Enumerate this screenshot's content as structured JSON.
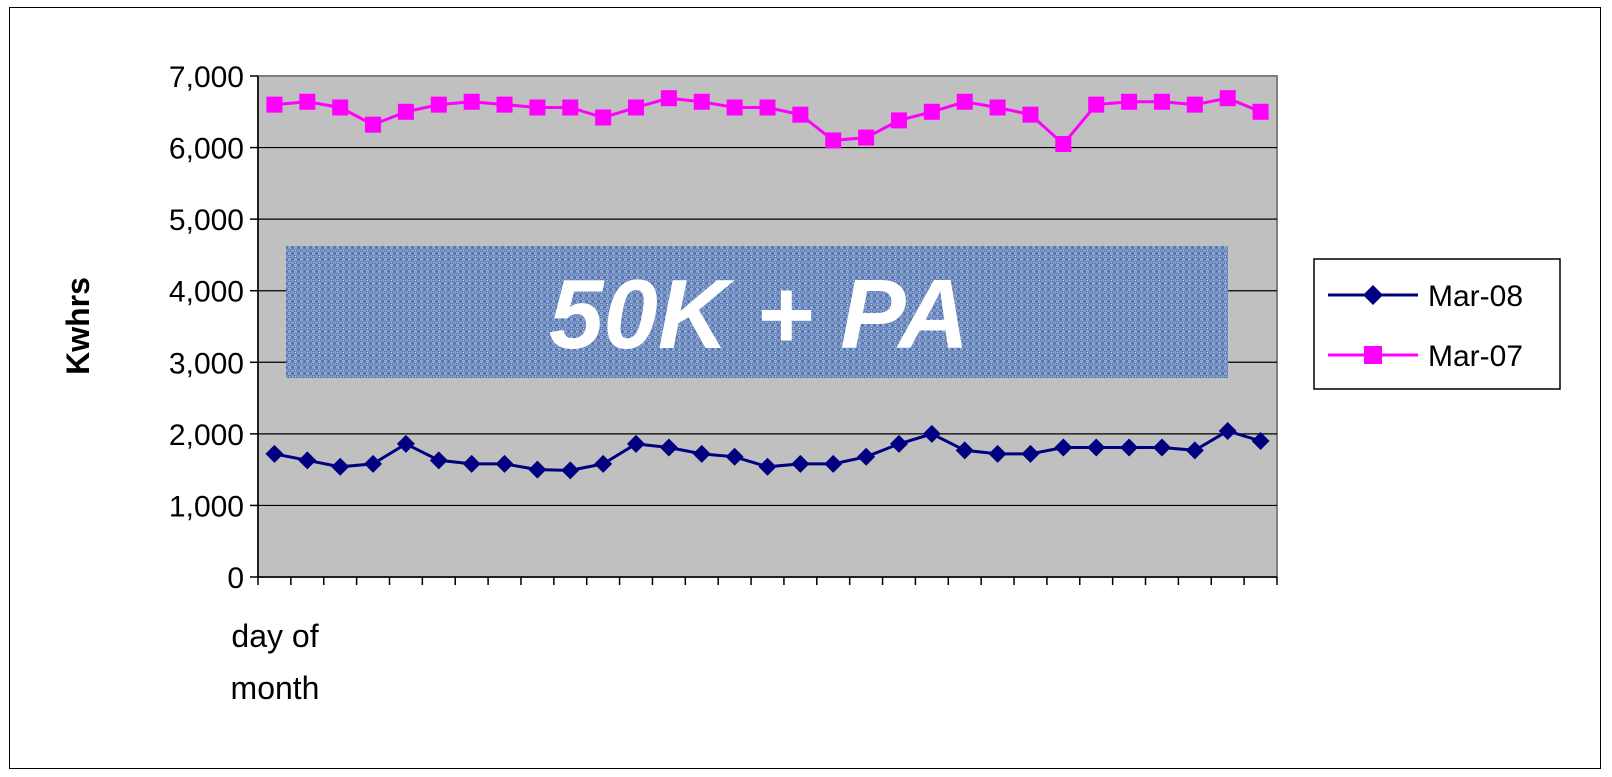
{
  "chart_data": {
    "type": "line",
    "title": "",
    "xlabel_lines": [
      "day of",
      "month"
    ],
    "ylabel": "Kwhrs",
    "ylim": [
      0,
      7000
    ],
    "yticks": [
      0,
      1000,
      2000,
      3000,
      4000,
      5000,
      6000,
      7000
    ],
    "ytick_labels": [
      "0",
      "1,000",
      "2,000",
      "3,000",
      "4,000",
      "5,000",
      "6,000",
      "7,000"
    ],
    "x": [
      1,
      2,
      3,
      4,
      5,
      6,
      7,
      8,
      9,
      10,
      11,
      12,
      13,
      14,
      15,
      16,
      17,
      18,
      19,
      20,
      21,
      22,
      23,
      24,
      25,
      26,
      27,
      28,
      29,
      30,
      31
    ],
    "grid": true,
    "plot_background": "#c0c0c0",
    "legend_position": "right",
    "annotation": "50K + PA",
    "series": [
      {
        "name": "Mar-08",
        "color": "#000080",
        "marker": "diamond",
        "values": [
          1720,
          1630,
          1540,
          1580,
          1860,
          1630,
          1580,
          1580,
          1500,
          1490,
          1580,
          1860,
          1810,
          1720,
          1680,
          1540,
          1580,
          1580,
          1680,
          1860,
          2000,
          1770,
          1720,
          1720,
          1810,
          1810,
          1810,
          1810,
          1770,
          2040,
          1900
        ]
      },
      {
        "name": "Mar-07",
        "color": "#ff00ff",
        "marker": "square",
        "values": [
          6600,
          6640,
          6560,
          6320,
          6500,
          6600,
          6640,
          6600,
          6560,
          6560,
          6420,
          6560,
          6690,
          6640,
          6560,
          6560,
          6460,
          6100,
          6140,
          6380,
          6500,
          6640,
          6560,
          6460,
          6050,
          6600,
          6640,
          6640,
          6600,
          6690,
          6500
        ]
      }
    ]
  }
}
